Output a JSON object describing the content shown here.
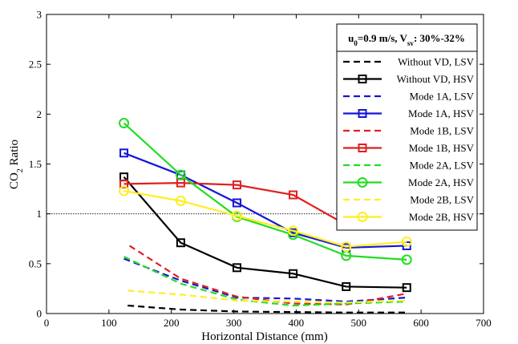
{
  "chart_data": {
    "type": "line",
    "xlabel": "Horizontal Distance (mm)",
    "ylabel": {
      "main": "CO",
      "sub": "2",
      "rest": " Ratio"
    },
    "xlim": [
      0,
      700
    ],
    "ylim": [
      0,
      3
    ],
    "xticks": [
      "0",
      "100",
      "200",
      "300",
      "400",
      "500",
      "600",
      "700"
    ],
    "yticks": [
      "0",
      "0.5",
      "1",
      "1.5",
      "2",
      "2.5",
      "3"
    ],
    "reference_line": {
      "y": 1
    },
    "legend": {
      "placement": "top-right",
      "title_parts": {
        "u": "u",
        "u_sub": "0",
        "mid": "=0.9 m/s, V",
        "v_sub": "sv",
        "tail": ": 30%-32%"
      }
    },
    "series": [
      {
        "name": "Without VD, LSV",
        "color": "#000000",
        "dashed": true,
        "marker": "none",
        "x": [
          130,
          215,
          305,
          395,
          480,
          577
        ],
        "y": [
          0.08,
          0.04,
          0.02,
          0.015,
          0.01,
          0.01
        ]
      },
      {
        "name": "Without VD, HSV",
        "color": "#000000",
        "dashed": false,
        "marker": "square",
        "x": [
          124,
          215,
          305,
          395,
          480,
          577
        ],
        "y": [
          1.37,
          0.71,
          0.46,
          0.4,
          0.27,
          0.26
        ]
      },
      {
        "name": "Mode 1A, LSV",
        "color": "#1515d8",
        "dashed": true,
        "marker": "none",
        "x": [
          124,
          215,
          305,
          395,
          480,
          577
        ],
        "y": [
          0.55,
          0.33,
          0.16,
          0.15,
          0.12,
          0.16
        ]
      },
      {
        "name": "Mode 1A, HSV",
        "color": "#1515d8",
        "dashed": false,
        "marker": "square",
        "x": [
          124,
          215,
          305,
          395,
          480,
          577
        ],
        "y": [
          1.61,
          1.39,
          1.11,
          0.81,
          0.66,
          0.68
        ]
      },
      {
        "name": "Mode 1B, LSV",
        "color": "#e02020",
        "dashed": true,
        "marker": "none",
        "x": [
          133,
          215,
          305,
          395,
          480,
          577
        ],
        "y": [
          0.68,
          0.35,
          0.17,
          0.1,
          0.09,
          0.2
        ]
      },
      {
        "name": "Mode 1B, HSV",
        "color": "#e02020",
        "dashed": false,
        "marker": "square",
        "x": [
          124,
          215,
          305,
          395,
          480,
          577
        ],
        "y": [
          1.3,
          1.31,
          1.29,
          1.19,
          0.89,
          0.89
        ]
      },
      {
        "name": "Mode 2A, LSV",
        "color": "#22dd22",
        "dashed": true,
        "marker": "none",
        "x": [
          124,
          215,
          305,
          395,
          480,
          577
        ],
        "y": [
          0.57,
          0.3,
          0.14,
          0.08,
          0.1,
          0.12
        ]
      },
      {
        "name": "Mode 2A, HSV",
        "color": "#22dd22",
        "dashed": false,
        "marker": "circle",
        "x": [
          124,
          215,
          305,
          395,
          480,
          577
        ],
        "y": [
          1.91,
          1.39,
          0.97,
          0.79,
          0.58,
          0.54
        ]
      },
      {
        "name": "Mode 2B, LSV",
        "color": "#ffee22",
        "dashed": true,
        "marker": "none",
        "x": [
          130,
          215,
          305,
          395,
          480,
          577
        ],
        "y": [
          0.23,
          0.19,
          0.13,
          0.12,
          0.11,
          0.13
        ]
      },
      {
        "name": "Mode 2B, HSV",
        "color": "#ffee22",
        "dashed": false,
        "marker": "circle",
        "x": [
          124,
          215,
          305,
          395,
          480,
          577
        ],
        "y": [
          1.23,
          1.13,
          0.98,
          0.83,
          0.67,
          0.72
        ]
      }
    ]
  }
}
